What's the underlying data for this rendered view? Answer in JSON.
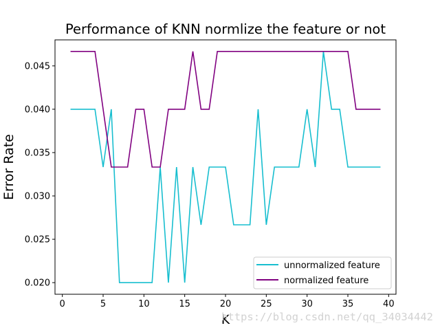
{
  "chart_data": {
    "type": "line",
    "title": "Performance of KNN normlize the feature or not",
    "xlabel": "K",
    "ylabel": "Error Rate",
    "xlim": [
      -0.9,
      40.9
    ],
    "ylim": [
      0.01866,
      0.048
    ],
    "xticks": [
      0,
      5,
      10,
      15,
      20,
      25,
      30,
      35,
      40
    ],
    "xtick_labels": [
      "0",
      "5",
      "10",
      "15",
      "20",
      "25",
      "30",
      "35",
      "40"
    ],
    "yticks": [
      0.02,
      0.025,
      0.03,
      0.035,
      0.04,
      0.045
    ],
    "ytick_labels": [
      "0.020",
      "0.025",
      "0.030",
      "0.035",
      "0.040",
      "0.045"
    ],
    "grid": false,
    "legend_position": "lower-right",
    "x": [
      1,
      2,
      3,
      4,
      5,
      6,
      7,
      8,
      9,
      10,
      11,
      12,
      13,
      14,
      15,
      16,
      17,
      18,
      19,
      20,
      21,
      22,
      23,
      24,
      25,
      26,
      27,
      28,
      29,
      30,
      31,
      32,
      33,
      34,
      35,
      36,
      37,
      38,
      39
    ],
    "series": [
      {
        "name": "unnormalized feature",
        "color": "#17becf",
        "values": [
          0.04,
          0.04,
          0.04,
          0.04,
          0.03333,
          0.04,
          0.02,
          0.02,
          0.02,
          0.02,
          0.02,
          0.03333,
          0.02,
          0.03333,
          0.02,
          0.03333,
          0.02667,
          0.03333,
          0.03333,
          0.03333,
          0.02667,
          0.02667,
          0.02667,
          0.04,
          0.02667,
          0.03333,
          0.03333,
          0.03333,
          0.03333,
          0.04,
          0.03333,
          0.04667,
          0.04,
          0.04,
          0.03333,
          0.03333,
          0.03333,
          0.03333,
          0.03333
        ]
      },
      {
        "name": "normalized feature",
        "color": "#800080",
        "values": [
          0.04667,
          0.04667,
          0.04667,
          0.04667,
          0.04,
          0.03333,
          0.03333,
          0.03333,
          0.04,
          0.04,
          0.03333,
          0.03333,
          0.04,
          0.04,
          0.04,
          0.04667,
          0.04,
          0.04,
          0.04667,
          0.04667,
          0.04667,
          0.04667,
          0.04667,
          0.04667,
          0.04667,
          0.04667,
          0.04667,
          0.04667,
          0.04667,
          0.04667,
          0.04667,
          0.04667,
          0.04667,
          0.04667,
          0.04667,
          0.04,
          0.04,
          0.04,
          0.04
        ]
      }
    ]
  },
  "watermark": "https://blog.csdn.net/qq_34034442"
}
